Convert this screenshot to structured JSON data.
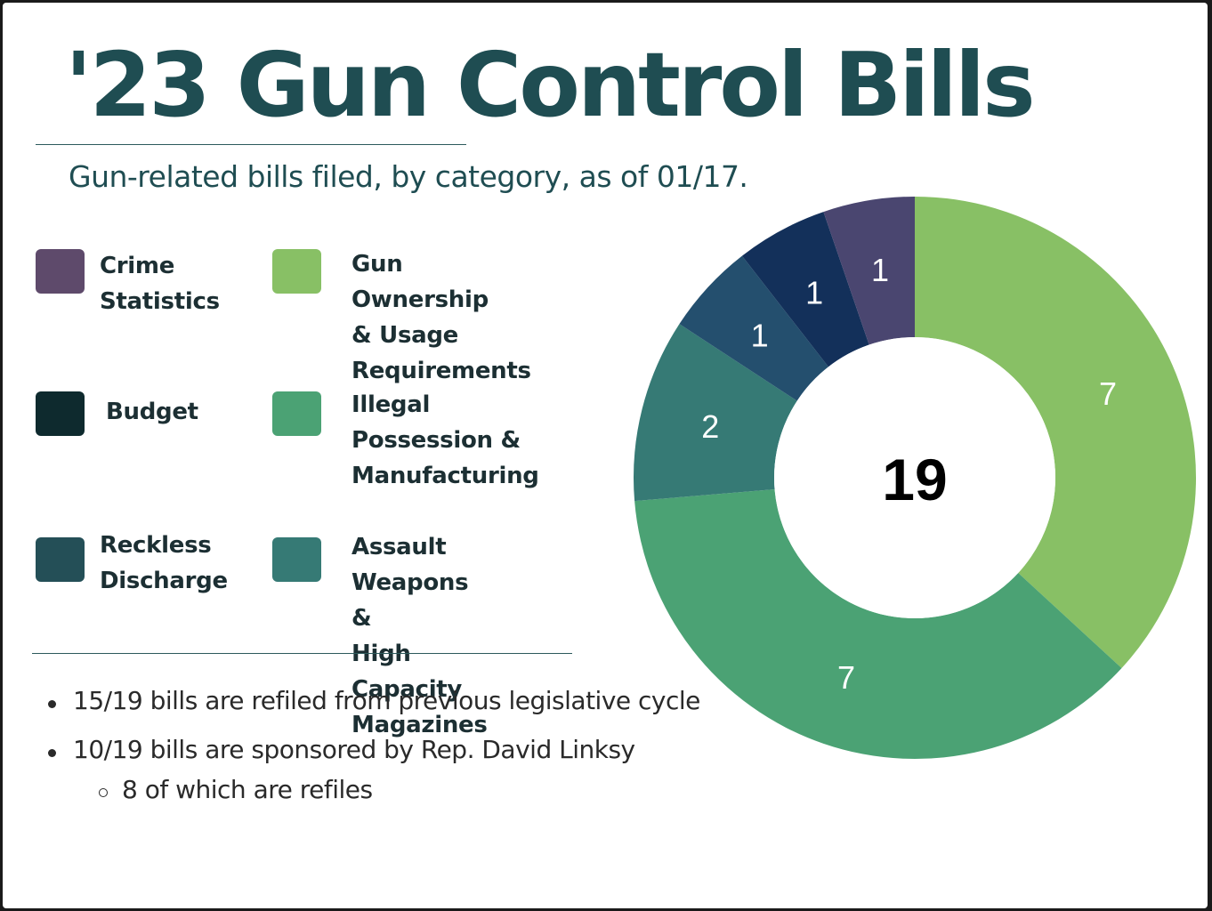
{
  "title": "'23 Gun Control Bills",
  "subtitle": "Gun-related bills filed, by category, as of 01/17.",
  "legend": [
    {
      "label": "Crime\nStatistics",
      "color": "#5e4a6b"
    },
    {
      "label": "Gun Ownership\n& Usage\nRequirements",
      "color": "#88c065"
    },
    {
      "label": "Budget",
      "color": "#0e2a2e"
    },
    {
      "label": "Illegal\nPossession &\nManufacturing",
      "color": "#4ba274"
    },
    {
      "label": "Reckless\nDischarge",
      "color": "#244f57"
    },
    {
      "label": "Assault Weapons &\nHigh Capacity\nMagazines",
      "color": "#367a75"
    }
  ],
  "notes": {
    "bullet_1": "15/19 bills are refiled from previous legislative cycle",
    "bullet_2": "10/19 bills are sponsored by Rep. David Linksy",
    "sub_bullet_1": "8 of which are refiles"
  },
  "chart_data": {
    "type": "pie",
    "center_label": "19",
    "total": 19,
    "slices": [
      {
        "value": 7,
        "label": "7",
        "color": "#88c065"
      },
      {
        "value": 7,
        "label": "7",
        "color": "#4ba274"
      },
      {
        "value": 2,
        "label": "2",
        "color": "#367a75"
      },
      {
        "value": 1,
        "label": "1",
        "color": "#244f6e"
      },
      {
        "value": 1,
        "label": "1",
        "color": "#13305a"
      },
      {
        "value": 1,
        "label": "1",
        "color": "#4a4670"
      }
    ]
  }
}
